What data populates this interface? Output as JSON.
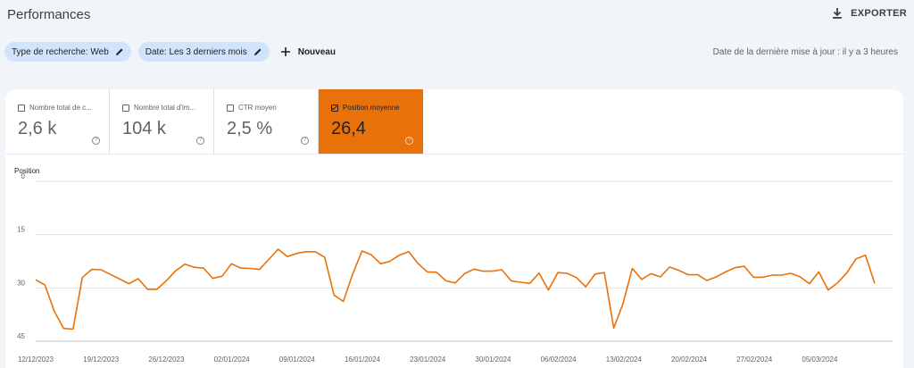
{
  "header": {
    "title": "Performances",
    "export_label": "EXPORTER"
  },
  "filters": {
    "chips": [
      {
        "label": "Type de recherche: Web"
      },
      {
        "label": "Date: Les 3 derniers mois"
      }
    ],
    "new_label": "Nouveau",
    "updated_text": "Date de la dernière mise à jour : il y a 3 heures"
  },
  "metrics": [
    {
      "label": "Nombre total de clics",
      "display_label": "Nombre total de c...",
      "value": "2,6 k",
      "checked": false
    },
    {
      "label": "Nombre total d'impressions",
      "display_label": "Nombre total d'im...",
      "value": "104 k",
      "checked": false
    },
    {
      "label": "CTR moyen",
      "display_label": "CTR moyen",
      "value": "2,5 %",
      "checked": false
    },
    {
      "label": "Position moyenne",
      "display_label": "Position moyenne",
      "value": "26,4",
      "checked": true
    }
  ],
  "colors": {
    "accent": "#e8710a",
    "chip_bg": "#d2e3fc",
    "line": "#e8710a"
  },
  "chart_data": {
    "type": "line",
    "ylabel": "Position",
    "yticks": [
      "0",
      "15",
      "30",
      "45"
    ],
    "ylim": [
      0,
      45
    ],
    "y_inverted": true,
    "xtick_labels": [
      "12/12/2023",
      "19/12/2023",
      "26/12/2023",
      "02/01/2024",
      "09/01/2024",
      "16/01/2024",
      "23/01/2024",
      "30/01/2024",
      "06/02/2024",
      "13/02/2024",
      "20/02/2024",
      "27/02/2024",
      "05/03/2024"
    ],
    "series": [
      {
        "values": [
          27.7,
          29.2,
          36.6,
          41.4,
          41.6,
          27.1,
          24.8,
          24.9,
          26.2,
          27.5,
          28.8,
          27.4,
          30.4,
          30.4,
          28.0,
          25.2,
          23.3,
          24.2,
          24.4,
          27.3,
          26.7,
          23.2,
          24.4,
          24.5,
          24.8,
          22.0,
          19.1,
          21.2,
          20.3,
          19.8,
          19.8,
          21.4,
          32.0,
          33.8,
          26.1,
          19.6,
          20.7,
          23.2,
          22.5,
          20.8,
          19.8,
          23.1,
          25.5,
          25.6,
          28.0,
          28.6,
          26.0,
          24.7,
          25.3,
          25.3,
          24.9,
          28.0,
          28.4,
          28.7,
          25.8,
          30.6,
          25.7,
          25.9,
          27.1,
          29.7,
          26.1,
          25.7,
          41.3,
          34.4,
          24.5,
          27.6,
          26.0,
          26.9,
          24.1,
          25.1,
          26.3,
          26.3,
          27.9,
          26.9,
          25.5,
          24.3,
          23.9,
          27.0,
          27.0,
          26.4,
          26.4,
          25.9,
          26.9,
          28.8,
          25.5,
          30.6,
          28.6,
          25.8,
          21.8,
          20.8,
          28.7
        ]
      }
    ]
  }
}
